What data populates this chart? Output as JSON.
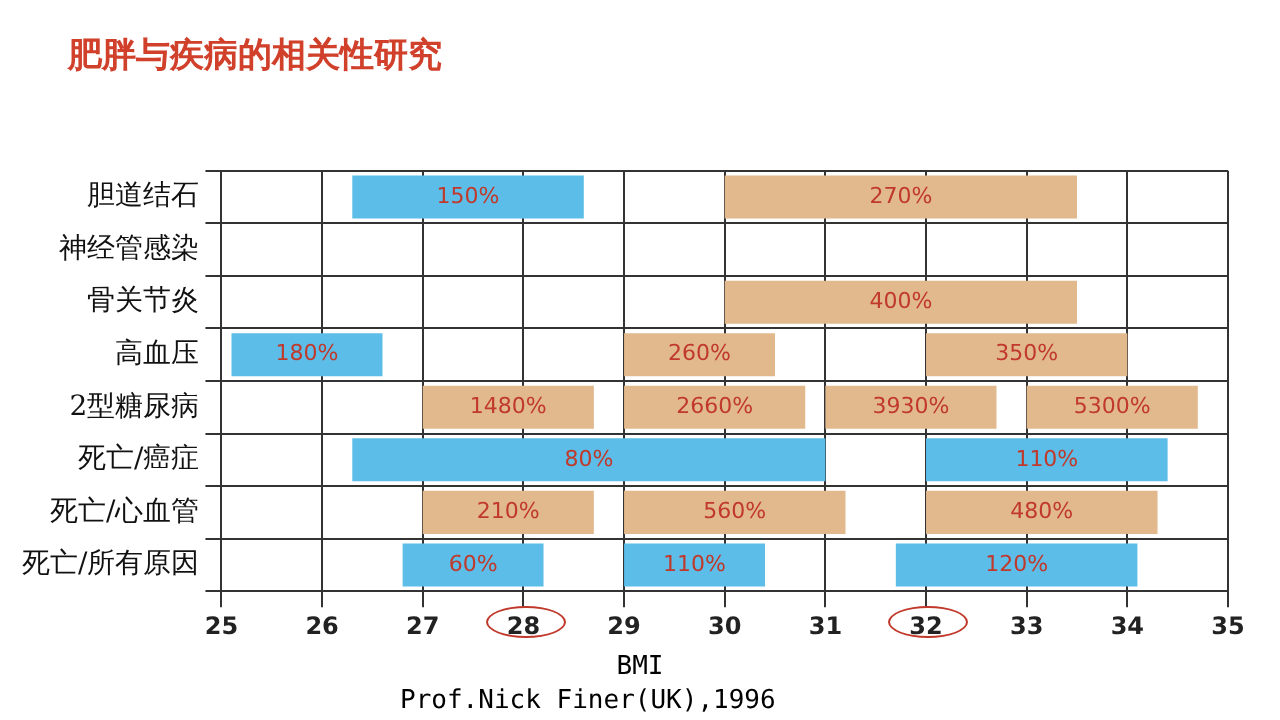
{
  "chart_data": {
    "type": "bar",
    "orientation": "horizontal",
    "title": "肥胖与疾病的相关性研究",
    "xlabel": "BMI",
    "annotations": [
      "Prof.Nick Finer(UK),1996",
      {
        "text": "150%",
        "x": 27.45,
        "y": "胆道结石"
      },
      {
        "text": "270%",
        "x": 31.75,
        "y": "胆道结石"
      },
      {
        "text": "400%",
        "x": 31.75,
        "y": "骨关节炎"
      },
      {
        "text": "180%",
        "x": 25.85,
        "y": "高血压"
      },
      {
        "text": "260%",
        "x": 29.75,
        "y": "高血压"
      },
      {
        "text": "350%",
        "x": 33,
        "y": "高血压"
      },
      {
        "text": "1480%",
        "x": 27.85,
        "y": "2型糖尿病"
      },
      {
        "text": "2660%",
        "x": 29.9,
        "y": "2型糖尿病"
      },
      {
        "text": "3930%",
        "x": 31.85,
        "y": "2型糖尿病"
      },
      {
        "text": "5300%",
        "x": 33.85,
        "y": "2型糖尿病"
      },
      {
        "text": "80%",
        "x": 28.65,
        "y": "死亡/癌症"
      },
      {
        "text": "110%",
        "x": 33.2,
        "y": "死亡/癌症"
      },
      {
        "text": "210%",
        "x": 27.85,
        "y": "死亡/心血管"
      },
      {
        "text": "560%",
        "x": 30.1,
        "y": "死亡/心血管"
      },
      {
        "text": "480%",
        "x": 33.15,
        "y": "死亡/心血管"
      },
      {
        "text": "60%",
        "x": 27.5,
        "y": "死亡/所有原因"
      },
      {
        "text": "110%",
        "x": 29.7,
        "y": "死亡/所有原因"
      },
      {
        "text": "120%",
        "x": 32.9,
        "y": "死亡/所有原因"
      }
    ],
    "categories": [
      "胆道结石",
      "神经管感染",
      "骨关节炎",
      "高血压",
      "2型糖尿病",
      "死亡/癌症",
      "死亡/心血管",
      "死亡/所有原因"
    ],
    "xlim": [
      25,
      35
    ],
    "xticks": [
      25,
      26,
      27,
      28,
      29,
      30,
      31,
      32,
      33,
      34,
      35
    ],
    "grid": true,
    "series": [
      {
        "base": [
          26.3,
          null,
          30,
          25.1,
          27,
          26.3,
          27,
          26.8
        ],
        "values": [
          2.3,
          null,
          3.5,
          1.5,
          1.7,
          4.7,
          1.7,
          1.4
        ],
        "colors": [
          "#5bbde8",
          null,
          "#e2b98c",
          "#5bbde8",
          "#e2b98c",
          "#5bbde8",
          "#e2b98c",
          "#5bbde8"
        ]
      },
      {
        "base": [
          30,
          null,
          null,
          29,
          29,
          32,
          29,
          29
        ],
        "values": [
          3.5,
          null,
          null,
          1.5,
          1.8,
          2.4,
          2.2,
          1.4
        ],
        "colors": [
          "#e2b98c",
          null,
          null,
          "#e2b98c",
          "#e2b98c",
          "#5bbde8",
          "#e2b98c",
          "#5bbde8"
        ]
      },
      {
        "base": [
          null,
          null,
          null,
          32,
          31,
          null,
          32,
          31.7
        ],
        "values": [
          null,
          null,
          null,
          2,
          1.7,
          null,
          2.3,
          2.4
        ],
        "colors": [
          null,
          null,
          null,
          "#e2b98c",
          "#e2b98c",
          null,
          "#e2b98c",
          "#5bbde8"
        ]
      },
      {
        "base": [
          null,
          null,
          null,
          null,
          33,
          null,
          null,
          null
        ],
        "values": [
          null,
          null,
          null,
          null,
          1.7,
          null,
          null,
          null
        ],
        "colors": [
          null,
          null,
          null,
          null,
          "#e2b98c",
          null,
          null,
          null
        ]
      }
    ]
  }
}
